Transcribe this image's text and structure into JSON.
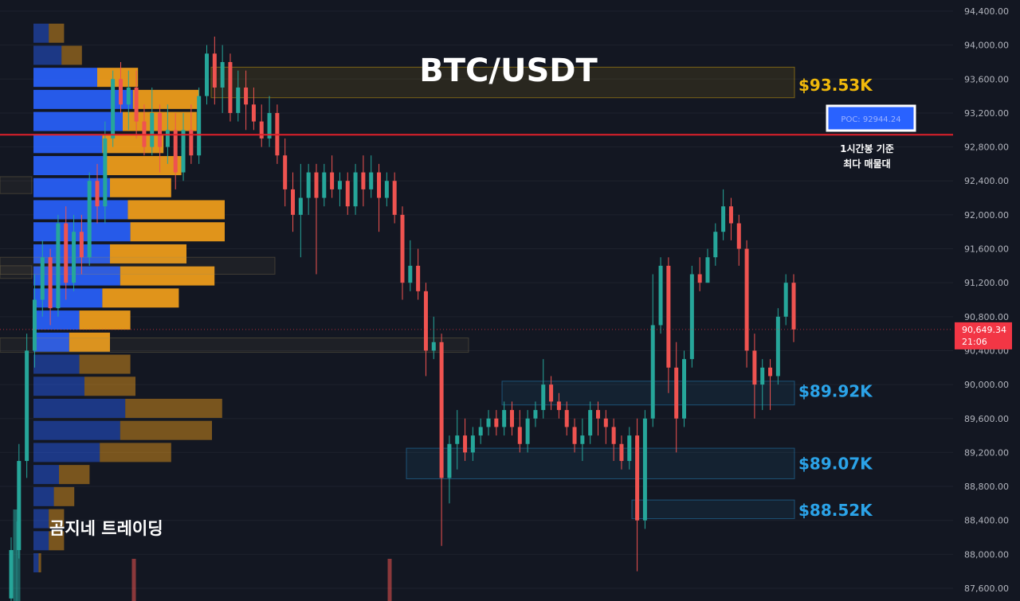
{
  "chart_data": {
    "type": "candlestick",
    "title": "BTC/USDT",
    "brand": "곰지네 트레이딩",
    "ylim": [
      87500,
      94500
    ],
    "y_ticks": [
      "94,400.00",
      "94,000.00",
      "93,600.00",
      "93,200.00",
      "92,800.00",
      "92,400.00",
      "92,000.00",
      "91,600.00",
      "91,200.00",
      "90,800.00",
      "90,400.00",
      "90,000.00",
      "89,600.00",
      "89,200.00",
      "88,800.00",
      "88,400.00",
      "88,000.00",
      "87,600.00"
    ],
    "y_tick_values": [
      94400,
      94000,
      93600,
      93200,
      92800,
      92400,
      92000,
      91600,
      91200,
      90800,
      90400,
      90000,
      89600,
      89200,
      88800,
      88400,
      88000,
      87600
    ],
    "current_price": {
      "value": 90649.34,
      "label": "90,649.34",
      "timer": "21:06",
      "color": "#f23645"
    },
    "poc": {
      "value": 92944.24,
      "label": "POC: 92944.24",
      "note_line1": "1시간봉 기준",
      "note_line2": "최다 매물대",
      "line_color": "#e0202a"
    },
    "levels": [
      {
        "label": "$93.53K",
        "value": 93530,
        "low": 93380,
        "high": 93740,
        "color": "#f0b90b"
      },
      {
        "label": "$89.92K",
        "value": 89920,
        "low": 89760,
        "high": 90040,
        "color": "#2ba3e8"
      },
      {
        "label": "$89.07K",
        "value": 89070,
        "low": 88890,
        "high": 89250,
        "color": "#2ba3e8"
      },
      {
        "label": "$88.52K",
        "value": 88520,
        "low": 88420,
        "high": 88640,
        "color": "#2ba3e8"
      }
    ],
    "volume_profile": {
      "up_color": "#2962ff",
      "down_color": "#f7a21b",
      "rows": [
        [
          94140,
          0.06,
          0.06
        ],
        [
          93880,
          0.11,
          0.08
        ],
        [
          93620,
          0.25,
          0.16
        ],
        [
          93360,
          0.39,
          0.26
        ],
        [
          93100,
          0.35,
          0.29
        ],
        [
          92840,
          0.27,
          0.24
        ],
        [
          92580,
          0.28,
          0.3
        ],
        [
          92320,
          0.3,
          0.24
        ],
        [
          92060,
          0.37,
          0.38
        ],
        [
          91800,
          0.38,
          0.37
        ],
        [
          91540,
          0.3,
          0.3
        ],
        [
          91280,
          0.34,
          0.37
        ],
        [
          91020,
          0.27,
          0.3
        ],
        [
          90760,
          0.18,
          0.2
        ],
        [
          90500,
          0.14,
          0.16
        ],
        [
          90240,
          0.18,
          0.2
        ],
        [
          89980,
          0.2,
          0.2
        ],
        [
          89720,
          0.36,
          0.38
        ],
        [
          89460,
          0.34,
          0.36
        ],
        [
          89200,
          0.26,
          0.28
        ],
        [
          88940,
          0.1,
          0.12
        ],
        [
          88680,
          0.08,
          0.08
        ],
        [
          88420,
          0.06,
          0.06
        ],
        [
          88160,
          0.06,
          0.06
        ],
        [
          87900,
          0.02,
          0.01
        ]
      ]
    },
    "candles": [
      [
        87480,
        88050,
        87380,
        88200
      ],
      [
        88050,
        89100,
        87950,
        89300
      ],
      [
        89100,
        90400,
        88900,
        90600
      ],
      [
        90400,
        91000,
        90200,
        91300
      ],
      [
        91000,
        91500,
        90800,
        91700
      ],
      [
        91500,
        90900,
        90700,
        91600
      ],
      [
        90900,
        91900,
        90800,
        92000
      ],
      [
        91900,
        91200,
        91000,
        92100
      ],
      [
        91200,
        91800,
        91100,
        92000
      ],
      [
        91800,
        91500,
        91300,
        92000
      ],
      [
        91500,
        92400,
        91400,
        92500
      ],
      [
        92400,
        92100,
        91900,
        92600
      ],
      [
        92100,
        92900,
        91900,
        93100
      ],
      [
        92900,
        93600,
        92800,
        93700
      ],
      [
        93600,
        93300,
        93200,
        93800
      ],
      [
        93300,
        93500,
        93000,
        93700
      ],
      [
        93500,
        93100,
        92900,
        93700
      ],
      [
        93100,
        92800,
        92700,
        93300
      ],
      [
        92800,
        93200,
        92700,
        93500
      ],
      [
        93200,
        92800,
        92500,
        93300
      ],
      [
        92800,
        93000,
        92600,
        93300
      ],
      [
        93000,
        92500,
        92300,
        93200
      ],
      [
        92500,
        93000,
        92400,
        93200
      ],
      [
        93000,
        92700,
        92600,
        93300
      ],
      [
        92700,
        93400,
        92600,
        93500
      ],
      [
        93400,
        93900,
        93300,
        94000
      ],
      [
        93900,
        93500,
        93300,
        94100
      ],
      [
        93500,
        93800,
        93200,
        94000
      ],
      [
        93800,
        93200,
        93100,
        93900
      ],
      [
        93200,
        93500,
        93100,
        93700
      ],
      [
        93500,
        93300,
        93000,
        93700
      ],
      [
        93300,
        93100,
        93000,
        93500
      ],
      [
        93100,
        92900,
        92800,
        93300
      ],
      [
        92900,
        93200,
        92800,
        93400
      ],
      [
        93200,
        92700,
        92600,
        93300
      ],
      [
        92700,
        92300,
        92100,
        92900
      ],
      [
        92300,
        92000,
        91800,
        92500
      ],
      [
        92000,
        92200,
        91500,
        92600
      ],
      [
        92200,
        92500,
        92000,
        92600
      ],
      [
        92500,
        92200,
        91300,
        92600
      ],
      [
        92200,
        92500,
        92100,
        92600
      ],
      [
        92500,
        92300,
        92200,
        92700
      ],
      [
        92300,
        92400,
        92100,
        92500
      ],
      [
        92400,
        92100,
        92000,
        92500
      ],
      [
        92100,
        92500,
        92000,
        92600
      ],
      [
        92500,
        92300,
        92100,
        92700
      ],
      [
        92300,
        92500,
        92200,
        92700
      ],
      [
        92500,
        92200,
        91800,
        92600
      ],
      [
        92200,
        92400,
        92100,
        92500
      ],
      [
        92400,
        92000,
        91900,
        92500
      ],
      [
        92000,
        91200,
        91000,
        92100
      ],
      [
        91200,
        91400,
        91100,
        91700
      ],
      [
        91400,
        91100,
        91000,
        91600
      ],
      [
        91100,
        90400,
        90100,
        91200
      ],
      [
        90400,
        90500,
        90300,
        90800
      ],
      [
        90500,
        88900,
        88100,
        90600
      ],
      [
        88900,
        89300,
        88600,
        89400
      ],
      [
        89300,
        89400,
        89000,
        89700
      ],
      [
        89400,
        89200,
        89100,
        89600
      ],
      [
        89200,
        89400,
        89100,
        89500
      ],
      [
        89400,
        89500,
        89300,
        89600
      ],
      [
        89500,
        89600,
        89400,
        89700
      ],
      [
        89600,
        89500,
        89400,
        89700
      ],
      [
        89500,
        89700,
        89400,
        89800
      ],
      [
        89700,
        89500,
        89400,
        89800
      ],
      [
        89500,
        89300,
        89200,
        89700
      ],
      [
        89300,
        89600,
        89200,
        89700
      ],
      [
        89600,
        89700,
        89500,
        89800
      ],
      [
        89700,
        90000,
        89600,
        90300
      ],
      [
        90000,
        89800,
        89700,
        90100
      ],
      [
        89800,
        89700,
        89600,
        89900
      ],
      [
        89700,
        89500,
        89400,
        89800
      ],
      [
        89500,
        89300,
        89200,
        89600
      ],
      [
        89300,
        89400,
        89100,
        89600
      ],
      [
        89400,
        89700,
        89300,
        89800
      ],
      [
        89700,
        89600,
        89400,
        89800
      ],
      [
        89600,
        89500,
        89300,
        89700
      ],
      [
        89500,
        89300,
        89100,
        89600
      ],
      [
        89300,
        89100,
        89000,
        89400
      ],
      [
        89100,
        89400,
        89000,
        89500
      ],
      [
        89400,
        88400,
        87800,
        89600
      ],
      [
        88400,
        89600,
        88300,
        89700
      ],
      [
        89600,
        90700,
        89500,
        91300
      ],
      [
        90700,
        91400,
        90600,
        91500
      ],
      [
        91400,
        90200,
        89900,
        91500
      ],
      [
        90200,
        89600,
        89200,
        90500
      ],
      [
        89600,
        90300,
        89500,
        90400
      ],
      [
        90300,
        91300,
        90200,
        91400
      ],
      [
        91300,
        91200,
        91100,
        91500
      ],
      [
        91200,
        91500,
        91200,
        91600
      ],
      [
        91500,
        91800,
        91400,
        91900
      ],
      [
        91800,
        92100,
        91700,
        92300
      ],
      [
        92100,
        91900,
        91700,
        92200
      ],
      [
        91900,
        91600,
        91400,
        92000
      ],
      [
        91600,
        90400,
        90200,
        91700
      ],
      [
        90400,
        90000,
        89600,
        90600
      ],
      [
        90000,
        90200,
        89700,
        90300
      ],
      [
        90200,
        90100,
        89700,
        90300
      ],
      [
        90100,
        90800,
        90000,
        90900
      ],
      [
        90800,
        91200,
        90700,
        91300
      ],
      [
        91200,
        90649.34,
        90500,
        91300
      ]
    ],
    "candle_colors": {
      "up": "#26a69a",
      "down": "#ef5350"
    }
  }
}
